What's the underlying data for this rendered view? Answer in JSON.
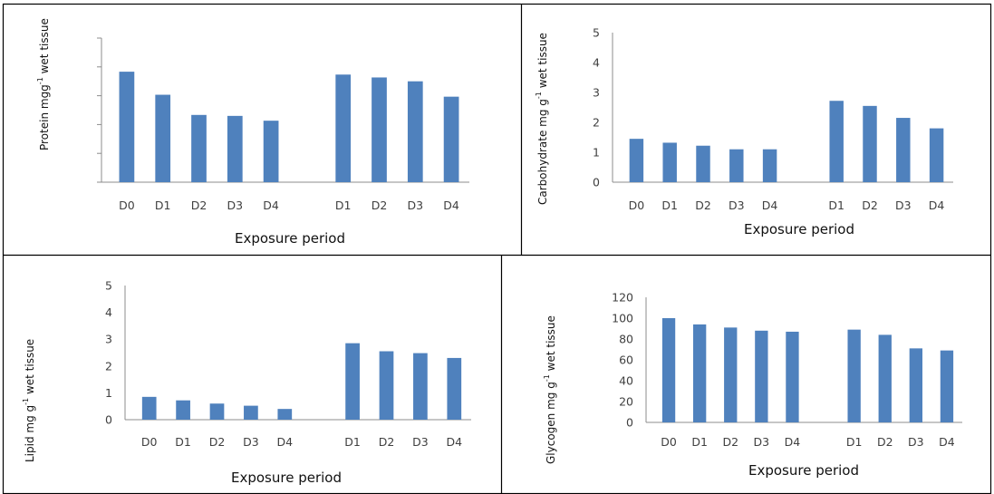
{
  "chart_data": [
    {
      "type": "bar",
      "categories": [
        "D0",
        "D1",
        "D2",
        "D3",
        "D4",
        "",
        "D1",
        "D2",
        "D3",
        "D4"
      ],
      "values": [
        11.5,
        9.1,
        7.0,
        6.9,
        6.4,
        null,
        11.2,
        10.9,
        10.5,
        8.9
      ],
      "xlabel": "Exposure period",
      "ylabel": {
        "prefix": "Protein mgg",
        "sup": "-1",
        "suffix": " wet tissue"
      },
      "ylim": [
        0,
        15
      ],
      "yticks": [],
      "color": "#4f81bd"
    },
    {
      "type": "bar",
      "categories": [
        "D0",
        "D1",
        "D2",
        "D3",
        "D4",
        "",
        "D1",
        "D2",
        "D3",
        "D4"
      ],
      "values": [
        1.45,
        1.32,
        1.22,
        1.1,
        1.1,
        null,
        2.72,
        2.55,
        2.15,
        1.8
      ],
      "xlabel": "Exposure period",
      "ylabel": {
        "prefix": "Carbohydrate  mg g",
        "sup": "-1",
        "suffix": " wet tissue"
      },
      "ylim": [
        0,
        5
      ],
      "yticks": [
        "0",
        "1",
        "2",
        "3",
        "4",
        "5"
      ],
      "color": "#4f81bd"
    },
    {
      "type": "bar",
      "categories": [
        "D0",
        "D1",
        "D2",
        "D3",
        "D4",
        "",
        "D1",
        "D2",
        "D3",
        "D4"
      ],
      "values": [
        0.85,
        0.72,
        0.6,
        0.52,
        0.4,
        null,
        2.85,
        2.55,
        2.48,
        2.3
      ],
      "xlabel": "Exposure period",
      "ylabel": {
        "prefix": "Lipid mg g",
        "sup": "-1",
        "suffix": " wet tissue"
      },
      "ylim": [
        0,
        5
      ],
      "yticks": [
        "0",
        "1",
        "2",
        "3",
        "4",
        "5"
      ],
      "color": "#4f81bd"
    },
    {
      "type": "bar",
      "categories": [
        "D0",
        "D1",
        "D2",
        "D3",
        "D4",
        "",
        "D1",
        "D2",
        "D3",
        "D4"
      ],
      "values": [
        100,
        94,
        91,
        88,
        87,
        null,
        89,
        84,
        71,
        69
      ],
      "xlabel": "Exposure period",
      "ylabel": {
        "prefix": "Glycogen  mg g",
        "sup": "-1",
        "suffix": " wet tissue"
      },
      "ylim": [
        0,
        120
      ],
      "yticks": [
        "0",
        "20",
        "40",
        "60",
        "80",
        "100",
        "120"
      ],
      "color": "#4f81bd"
    }
  ]
}
